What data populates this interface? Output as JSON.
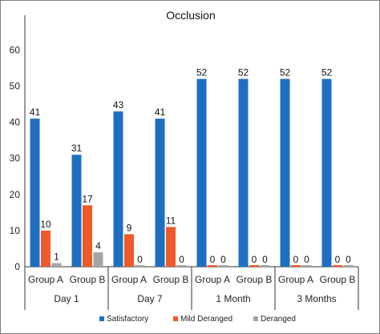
{
  "chart_data": {
    "type": "bar",
    "title": "Occlusion",
    "xlabel": "",
    "ylabel": "",
    "ylim": [
      0,
      60
    ],
    "yticks": [
      0,
      10,
      20,
      30,
      40,
      50,
      60
    ],
    "grid": false,
    "legend_position": "bottom",
    "categories": [
      "Group A",
      "Group B",
      "Group A",
      "Group B",
      "Group A",
      "Group B",
      "Group A",
      "Group B"
    ],
    "period_groups": [
      {
        "label": "Day 1",
        "span": 2
      },
      {
        "label": "Day 7",
        "span": 2
      },
      {
        "label": "1 Month",
        "span": 2
      },
      {
        "label": "3 Months",
        "span": 2
      }
    ],
    "series": [
      {
        "name": "Satisfactory",
        "color": "#1f6fc0",
        "values": [
          41,
          31,
          43,
          41,
          52,
          52,
          52,
          52
        ]
      },
      {
        "name": "Mild Deranged",
        "color": "#f05a28",
        "values": [
          10,
          17,
          9,
          11,
          0,
          0,
          0,
          0
        ]
      },
      {
        "name": "Deranged",
        "color": "#a5a5a5",
        "values": [
          1,
          4,
          0,
          0,
          0,
          0,
          0,
          0
        ]
      }
    ]
  }
}
